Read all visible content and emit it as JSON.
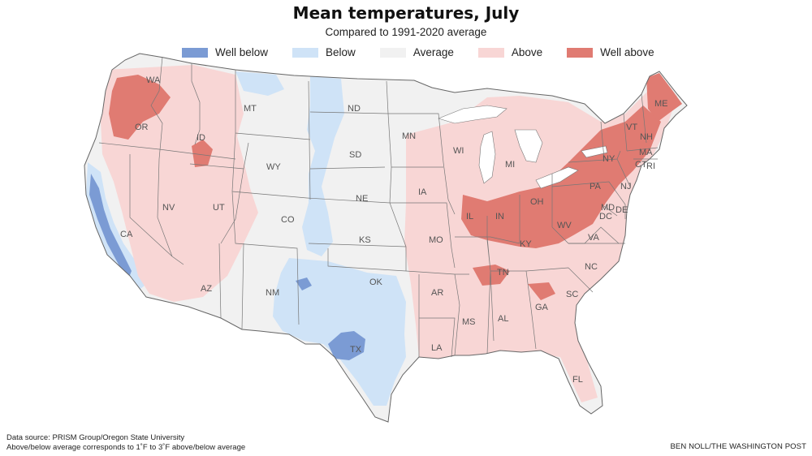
{
  "header": {
    "title": "Mean temperatures, July",
    "subtitle": "Compared to 1991-2020 average"
  },
  "legend": [
    {
      "label": "Well below",
      "color": "#7b9bd4"
    },
    {
      "label": "Below",
      "color": "#cfe3f7"
    },
    {
      "label": "Average",
      "color": "#f1f1f1"
    },
    {
      "label": "Above",
      "color": "#f8d6d5"
    },
    {
      "label": "Well above",
      "color": "#e07b72"
    }
  ],
  "colors": {
    "well_below": "#7b9bd4",
    "below": "#cfe3f7",
    "average": "#f1f1f1",
    "above": "#f8d6d5",
    "well_above": "#e07b72",
    "border": "#777777"
  },
  "states": {
    "WA": "WA",
    "OR": "OR",
    "CA": "CA",
    "ID": "ID",
    "NV": "NV",
    "MT": "MT",
    "WY": "WY",
    "UT": "UT",
    "AZ": "AZ",
    "CO": "CO",
    "NM": "NM",
    "ND": "ND",
    "SD": "SD",
    "NE": "NE",
    "KS": "KS",
    "OK": "OK",
    "TX": "TX",
    "MN": "MN",
    "IA": "IA",
    "MO": "MO",
    "AR": "AR",
    "LA": "LA",
    "WI": "WI",
    "IL": "IL",
    "MS": "MS",
    "MI": "MI",
    "IN": "IN",
    "KY": "KY",
    "TN": "TN",
    "AL": "AL",
    "OH": "OH",
    "GA": "GA",
    "FL": "FL",
    "SC": "SC",
    "NC": "NC",
    "VA": "VA",
    "WV": "WV",
    "PA": "PA",
    "NY": "NY",
    "VT": "VT",
    "NH": "NH",
    "ME": "ME",
    "MA": "MA",
    "CT": "CT",
    "RI": "RI",
    "NJ": "NJ",
    "DE": "DE",
    "MD": "MD",
    "DC": "DC"
  },
  "footer": {
    "source": "Data source: PRISM Group/Oregon State University",
    "note": "Above/below average corresponds to 1˚F to 3˚F above/below average",
    "credit": "BEN NOLL/THE WASHINGTON POST"
  }
}
